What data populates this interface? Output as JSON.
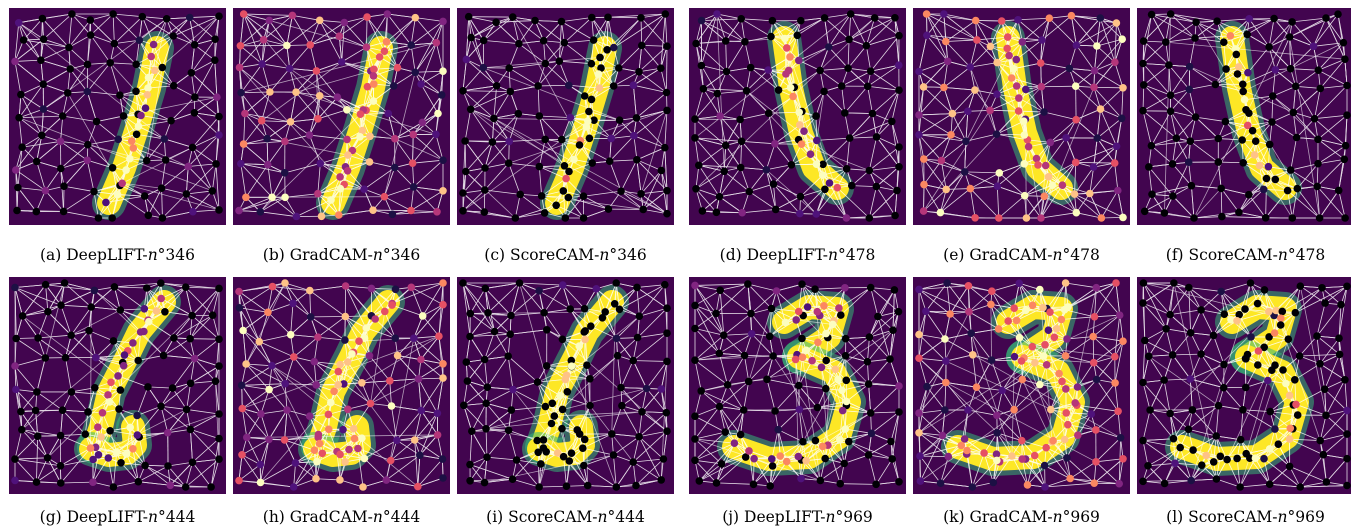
{
  "figure": {
    "panels": [
      {
        "id": "a",
        "caption_prefix": "(a) DeepLIFT-",
        "n": "n",
        "suffix": "°346",
        "digit": "1a",
        "method": "DeepLIFT"
      },
      {
        "id": "b",
        "caption_prefix": "(b) GradCAM-",
        "n": "n",
        "suffix": "°346",
        "digit": "1a",
        "method": "GradCAM"
      },
      {
        "id": "c",
        "caption_prefix": "(c) ScoreCAM-",
        "n": "n",
        "suffix": "°346",
        "digit": "1a",
        "method": "ScoreCAM"
      },
      {
        "id": "d",
        "caption_prefix": "(d) DeepLIFT-",
        "n": "n",
        "suffix": "°478",
        "digit": "1b",
        "method": "DeepLIFT"
      },
      {
        "id": "e",
        "caption_prefix": "(e) GradCAM-",
        "n": "n",
        "suffix": "°478",
        "digit": "1b",
        "method": "GradCAM"
      },
      {
        "id": "f",
        "caption_prefix": "(f) ScoreCAM-",
        "n": "n",
        "suffix": "°478",
        "digit": "1b",
        "method": "ScoreCAM"
      },
      {
        "id": "g",
        "caption_prefix": "(g) DeepLIFT-",
        "n": "n",
        "suffix": "°444",
        "digit": "1c",
        "method": "DeepLIFT"
      },
      {
        "id": "h",
        "caption_prefix": "(h) GradCAM-",
        "n": "n",
        "suffix": "°444",
        "digit": "1c",
        "method": "GradCAM"
      },
      {
        "id": "i",
        "caption_prefix": "(i) ScoreCAM-",
        "n": "n",
        "suffix": "°444",
        "digit": "1c",
        "method": "ScoreCAM"
      },
      {
        "id": "j",
        "caption_prefix": "(j) DeepLIFT-",
        "n": "n",
        "suffix": "°969",
        "digit": "3",
        "method": "DeepLIFT"
      },
      {
        "id": "k",
        "caption_prefix": "(k) GradCAM-",
        "n": "n",
        "suffix": "°969",
        "digit": "3",
        "method": "GradCAM"
      },
      {
        "id": "l",
        "caption_prefix": "(l) ScoreCAM-",
        "n": "n",
        "suffix": "°969",
        "digit": "3",
        "method": "ScoreCAM"
      }
    ],
    "colors": {
      "background": "#42054f",
      "edge": "#ffffff",
      "digit_fill": "#fde725",
      "digit_edge": "#35b779",
      "magma": [
        "#000004",
        "#1c1044",
        "#4f127b",
        "#812581",
        "#b5367a",
        "#e55064",
        "#fb8761",
        "#fec287",
        "#fcfdbf"
      ]
    }
  }
}
